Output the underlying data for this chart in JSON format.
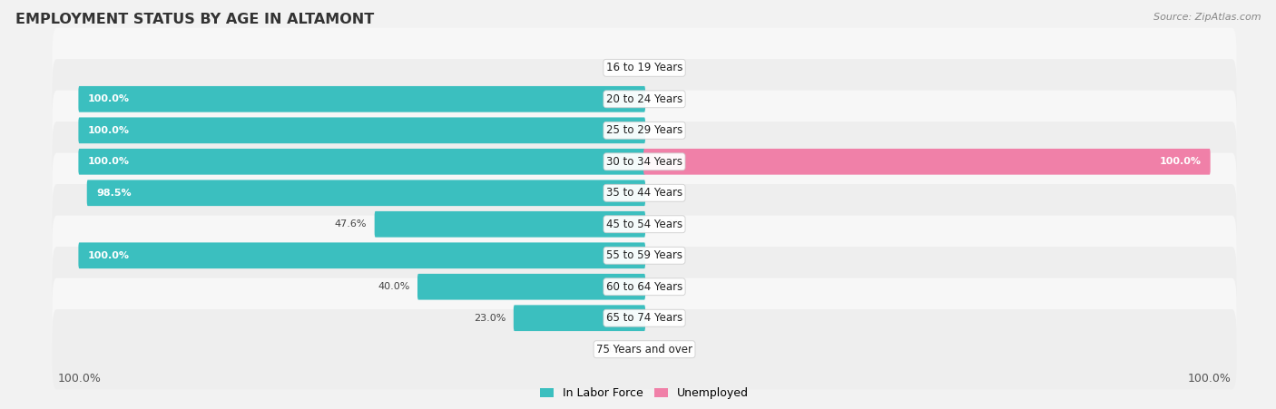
{
  "title": "EMPLOYMENT STATUS BY AGE IN ALTAMONT",
  "source": "Source: ZipAtlas.com",
  "age_groups": [
    "16 to 19 Years",
    "20 to 24 Years",
    "25 to 29 Years",
    "30 to 34 Years",
    "35 to 44 Years",
    "45 to 54 Years",
    "55 to 59 Years",
    "60 to 64 Years",
    "65 to 74 Years",
    "75 Years and over"
  ],
  "labor_force": [
    0.0,
    100.0,
    100.0,
    100.0,
    98.5,
    47.6,
    100.0,
    40.0,
    23.0,
    0.0
  ],
  "unemployed": [
    0.0,
    0.0,
    0.0,
    100.0,
    0.0,
    0.0,
    0.0,
    0.0,
    0.0,
    0.0
  ],
  "labor_color": "#3bbfbf",
  "unemployed_color": "#f080a8",
  "row_light": "#f7f7f7",
  "row_dark": "#eeeeee",
  "bar_height": 0.52,
  "xlim": 100.0,
  "legend_labels": [
    "In Labor Force",
    "Unemployed"
  ],
  "bg_color": "#f2f2f2"
}
